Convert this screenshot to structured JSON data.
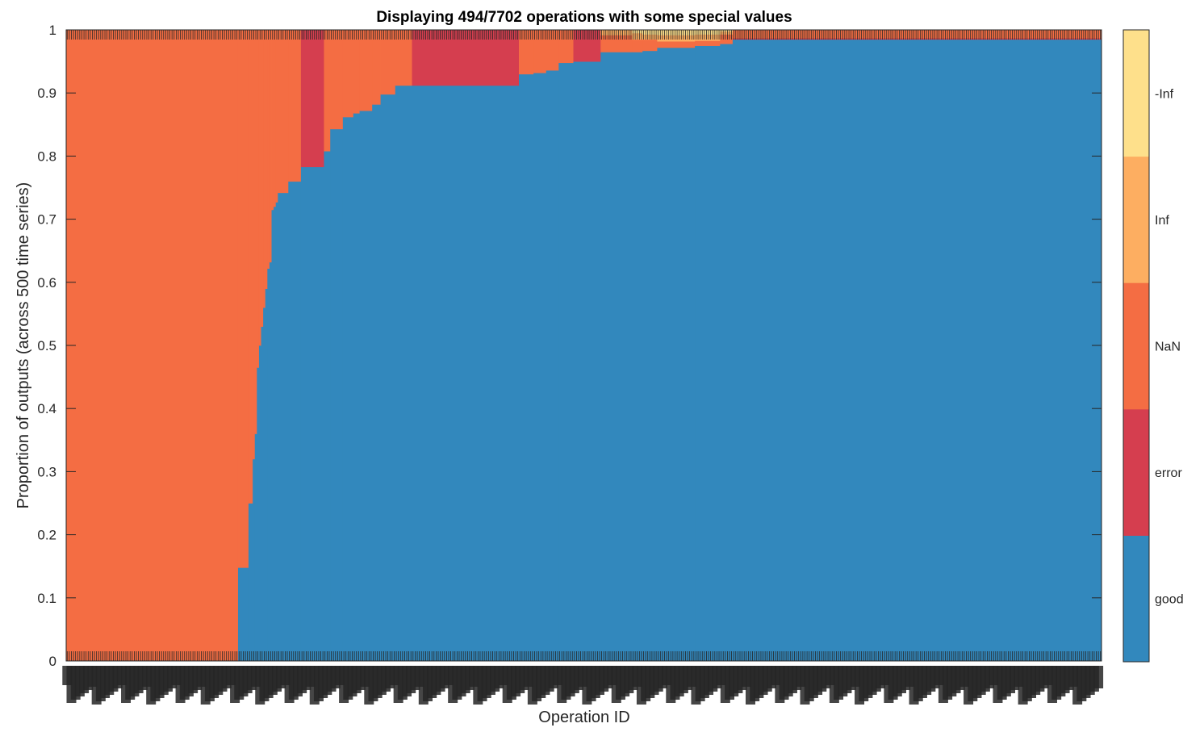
{
  "chart_data": {
    "type": "bar",
    "stacked": true,
    "title": "Displaying 494/7702 operations with some special values",
    "xlabel": "Operation ID",
    "ylabel": "Proportion of outputs (across 500 time series)",
    "ylim": [
      0,
      1
    ],
    "yticks": [
      "0",
      "0.1",
      "0.2",
      "0.3",
      "0.4",
      "0.5",
      "0.6",
      "0.7",
      "0.8",
      "0.9",
      "1"
    ],
    "n_operations": 494,
    "x_tick_labels_note": "494 overlapping, illegible operation IDs",
    "grid": false,
    "legend_placement": "colorbar-right",
    "categories": [
      {
        "name": "good",
        "color": "#3288BD"
      },
      {
        "name": "error",
        "color": "#D53E4F"
      },
      {
        "name": "NaN",
        "color": "#F46D43"
      },
      {
        "name": "Inf",
        "color": "#FDAE61"
      },
      {
        "name": "-Inf",
        "color": "#FEE08B"
      }
    ],
    "segments": [
      {
        "from": 0,
        "to": 82,
        "good": 0.0,
        "error": 0.0,
        "NaN": 1.0,
        "Inf": 0.0,
        "-Inf": 0.0
      },
      {
        "from": 82,
        "to": 87,
        "good": 0.148,
        "error": 0.0,
        "NaN": 0.852,
        "Inf": 0.0,
        "-Inf": 0.0
      },
      {
        "from": 87,
        "to": 89,
        "good": 0.25,
        "error": 0.0,
        "NaN": 0.75,
        "Inf": 0.0,
        "-Inf": 0.0
      },
      {
        "from": 89,
        "to": 90,
        "good": 0.32,
        "error": 0.0,
        "NaN": 0.68,
        "Inf": 0.0,
        "-Inf": 0.0
      },
      {
        "from": 90,
        "to": 91,
        "good": 0.36,
        "error": 0.0,
        "NaN": 0.64,
        "Inf": 0.0,
        "-Inf": 0.0
      },
      {
        "from": 91,
        "to": 92,
        "good": 0.465,
        "error": 0.0,
        "NaN": 0.535,
        "Inf": 0.0,
        "-Inf": 0.0
      },
      {
        "from": 92,
        "to": 93,
        "good": 0.5,
        "error": 0.0,
        "NaN": 0.5,
        "Inf": 0.0,
        "-Inf": 0.0
      },
      {
        "from": 93,
        "to": 94,
        "good": 0.53,
        "error": 0.0,
        "NaN": 0.47,
        "Inf": 0.0,
        "-Inf": 0.0
      },
      {
        "from": 94,
        "to": 95,
        "good": 0.56,
        "error": 0.0,
        "NaN": 0.44,
        "Inf": 0.0,
        "-Inf": 0.0
      },
      {
        "from": 95,
        "to": 96,
        "good": 0.59,
        "error": 0.0,
        "NaN": 0.41,
        "Inf": 0.0,
        "-Inf": 0.0
      },
      {
        "from": 96,
        "to": 97,
        "good": 0.622,
        "error": 0.0,
        "NaN": 0.378,
        "Inf": 0.0,
        "-Inf": 0.0
      },
      {
        "from": 97,
        "to": 98,
        "good": 0.632,
        "error": 0.0,
        "NaN": 0.368,
        "Inf": 0.0,
        "-Inf": 0.0
      },
      {
        "from": 98,
        "to": 99,
        "good": 0.715,
        "error": 0.0,
        "NaN": 0.285,
        "Inf": 0.0,
        "-Inf": 0.0
      },
      {
        "from": 99,
        "to": 100,
        "good": 0.72,
        "error": 0.0,
        "NaN": 0.28,
        "Inf": 0.0,
        "-Inf": 0.0
      },
      {
        "from": 100,
        "to": 101,
        "good": 0.727,
        "error": 0.0,
        "NaN": 0.273,
        "Inf": 0.0,
        "-Inf": 0.0
      },
      {
        "from": 101,
        "to": 106,
        "good": 0.742,
        "error": 0.0,
        "NaN": 0.258,
        "Inf": 0.0,
        "-Inf": 0.0
      },
      {
        "from": 106,
        "to": 112,
        "good": 0.76,
        "error": 0.0,
        "NaN": 0.24,
        "Inf": 0.0,
        "-Inf": 0.0
      },
      {
        "from": 112,
        "to": 123,
        "good": 0.783,
        "error": 0.217,
        "NaN": 0.0,
        "Inf": 0.0,
        "-Inf": 0.0
      },
      {
        "from": 123,
        "to": 126,
        "good": 0.808,
        "error": 0.0,
        "NaN": 0.192,
        "Inf": 0.0,
        "-Inf": 0.0
      },
      {
        "from": 126,
        "to": 132,
        "good": 0.843,
        "error": 0.0,
        "NaN": 0.157,
        "Inf": 0.0,
        "-Inf": 0.0
      },
      {
        "from": 132,
        "to": 137,
        "good": 0.862,
        "error": 0.0,
        "NaN": 0.138,
        "Inf": 0.0,
        "-Inf": 0.0
      },
      {
        "from": 137,
        "to": 140,
        "good": 0.868,
        "error": 0.0,
        "NaN": 0.132,
        "Inf": 0.0,
        "-Inf": 0.0
      },
      {
        "from": 140,
        "to": 146,
        "good": 0.872,
        "error": 0.0,
        "NaN": 0.128,
        "Inf": 0.0,
        "-Inf": 0.0
      },
      {
        "from": 146,
        "to": 150,
        "good": 0.882,
        "error": 0.0,
        "NaN": 0.118,
        "Inf": 0.0,
        "-Inf": 0.0
      },
      {
        "from": 150,
        "to": 157,
        "good": 0.898,
        "error": 0.0,
        "NaN": 0.102,
        "Inf": 0.0,
        "-Inf": 0.0
      },
      {
        "from": 157,
        "to": 165,
        "good": 0.912,
        "error": 0.0,
        "NaN": 0.088,
        "Inf": 0.0,
        "-Inf": 0.0
      },
      {
        "from": 165,
        "to": 216,
        "good": 0.912,
        "error": 0.088,
        "NaN": 0.0,
        "Inf": 0.0,
        "-Inf": 0.0
      },
      {
        "from": 216,
        "to": 223,
        "good": 0.93,
        "error": 0.0,
        "NaN": 0.07,
        "Inf": 0.0,
        "-Inf": 0.0
      },
      {
        "from": 223,
        "to": 229,
        "good": 0.932,
        "error": 0.0,
        "NaN": 0.068,
        "Inf": 0.0,
        "-Inf": 0.0
      },
      {
        "from": 229,
        "to": 235,
        "good": 0.936,
        "error": 0.0,
        "NaN": 0.064,
        "Inf": 0.0,
        "-Inf": 0.0
      },
      {
        "from": 235,
        "to": 242,
        "good": 0.948,
        "error": 0.0,
        "NaN": 0.052,
        "Inf": 0.0,
        "-Inf": 0.0
      },
      {
        "from": 242,
        "to": 255,
        "good": 0.95,
        "error": 0.05,
        "NaN": 0.0,
        "Inf": 0.0,
        "-Inf": 0.0
      },
      {
        "from": 255,
        "to": 270,
        "good": 0.965,
        "error": 0.0,
        "NaN": 0.027,
        "Inf": 0.008,
        "-Inf": 0.0
      },
      {
        "from": 270,
        "to": 275,
        "good": 0.965,
        "error": 0.0,
        "NaN": 0.02,
        "Inf": 0.01,
        "-Inf": 0.005
      },
      {
        "from": 275,
        "to": 282,
        "good": 0.967,
        "error": 0.0,
        "NaN": 0.018,
        "Inf": 0.008,
        "-Inf": 0.007
      },
      {
        "from": 282,
        "to": 300,
        "good": 0.972,
        "error": 0.0,
        "NaN": 0.01,
        "Inf": 0.01,
        "-Inf": 0.008
      },
      {
        "from": 300,
        "to": 312,
        "good": 0.975,
        "error": 0.0,
        "NaN": 0.008,
        "Inf": 0.01,
        "-Inf": 0.007
      },
      {
        "from": 312,
        "to": 318,
        "good": 0.978,
        "error": 0.0,
        "NaN": 0.015,
        "Inf": 0.005,
        "-Inf": 0.002
      },
      {
        "from": 318,
        "to": 494,
        "good": 0.985,
        "error": 0.002,
        "NaN": 0.013,
        "Inf": 0.0,
        "-Inf": 0.0
      }
    ]
  }
}
